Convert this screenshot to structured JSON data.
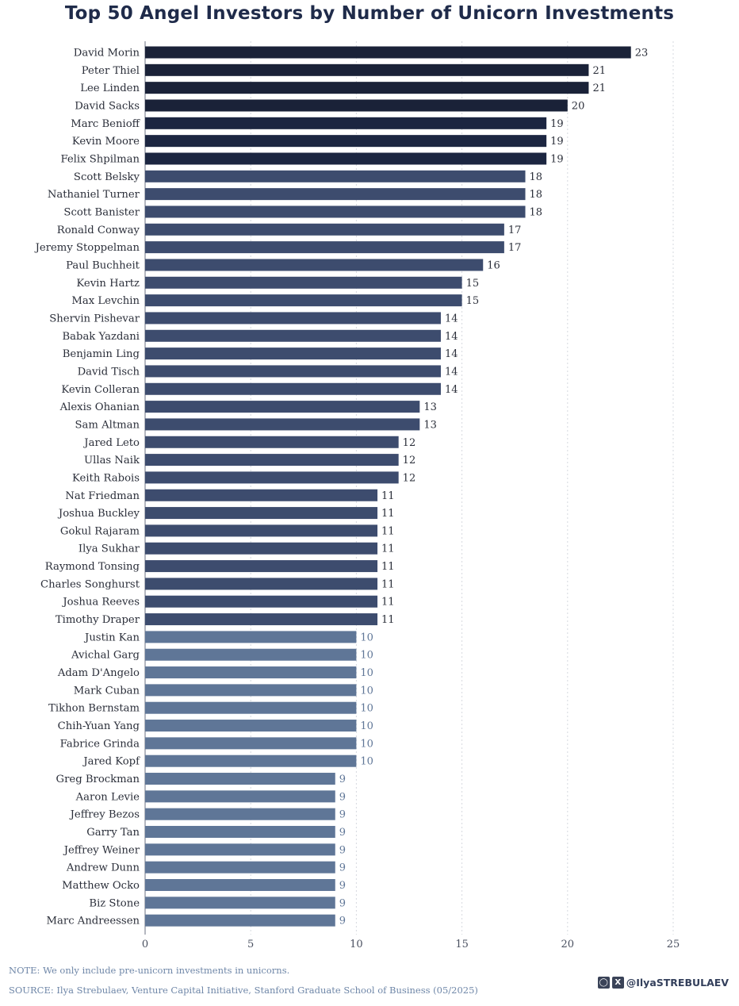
{
  "colors": {
    "dark": "#1c2641",
    "mid": "#3d4c6e",
    "light": "#5f7697",
    "grid": "#d6d9df",
    "axis": "#6b7280"
  },
  "footer": {
    "note": "NOTE: We only include pre-unicorn investments in unicorns.",
    "source": "SOURCE: Ilya Strebulaev, Venture Capital Initiative, Stanford Graduate School of Business (05/2025)",
    "handle": "@IlyaSTREBULAEV",
    "icons": [
      "instagram-icon",
      "x-icon"
    ]
  },
  "chart_data": {
    "type": "bar",
    "orientation": "horizontal",
    "title": "Top 50 Angel Investors by Number of Unicorn Investments",
    "xlabel": "",
    "ylabel": "",
    "xlim": [
      0,
      25
    ],
    "xticks": [
      0,
      5,
      10,
      15,
      20,
      25
    ],
    "grid": "vertical dotted",
    "categories": [
      "David Morin",
      "Peter Thiel",
      "Lee Linden",
      "David Sacks",
      "Marc Benioff",
      "Kevin Moore",
      "Felix Shpilman",
      "Scott Belsky",
      "Nathaniel Turner",
      "Scott Banister",
      "Ronald Conway",
      "Jeremy Stoppelman",
      "Paul Buchheit",
      "Kevin Hartz",
      "Max Levchin",
      "Shervin Pishevar",
      "Babak Yazdani",
      "Benjamin Ling",
      "David Tisch",
      "Kevin Colleran",
      "Alexis Ohanian",
      "Sam Altman",
      "Jared Leto",
      "Ullas Naik",
      "Keith Rabois",
      "Nat Friedman",
      "Joshua Buckley",
      "Gokul Rajaram",
      "Ilya Sukhar",
      "Raymond Tonsing",
      "Charles Songhurst",
      "Joshua Reeves",
      "Timothy Draper",
      "Justin Kan",
      "Avichal Garg",
      "Adam D'Angelo",
      "Mark Cuban",
      "Tikhon Bernstam",
      "Chih-Yuan Yang",
      "Fabrice Grinda",
      "Jared Kopf",
      "Greg Brockman",
      "Aaron Levie",
      "Jeffrey Bezos",
      "Garry Tan",
      "Jeffrey Weiner",
      "Andrew Dunn",
      "Matthew Ocko",
      "Biz Stone",
      "Marc Andreessen"
    ],
    "values": [
      23,
      21,
      21,
      20,
      19,
      19,
      19,
      18,
      18,
      18,
      17,
      17,
      16,
      15,
      15,
      14,
      14,
      14,
      14,
      14,
      13,
      13,
      12,
      12,
      12,
      11,
      11,
      11,
      11,
      11,
      11,
      11,
      11,
      10,
      10,
      10,
      10,
      10,
      10,
      10,
      10,
      9,
      9,
      9,
      9,
      9,
      9,
      9,
      9,
      9
    ]
  }
}
